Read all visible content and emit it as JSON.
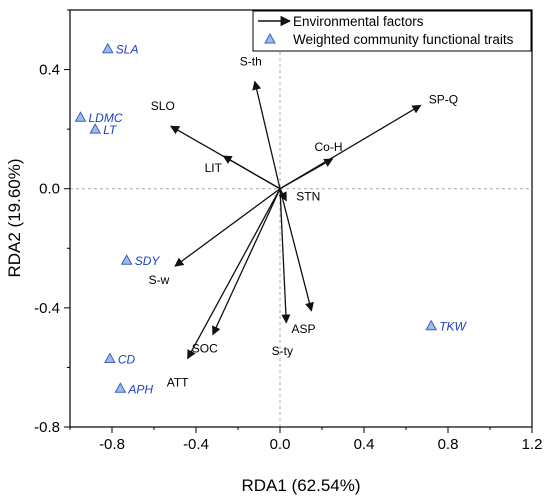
{
  "chart_data": {
    "type": "scatter",
    "subtype": "rda-biplot",
    "xlabel": "RDA1 (62.54%)",
    "ylabel": "RDA2 (19.60%)",
    "xlim": [
      -1.0,
      1.2
    ],
    "ylim": [
      -0.8,
      0.6
    ],
    "x_ticks": [
      -0.8,
      -0.4,
      0.0,
      0.4,
      0.8,
      1.2
    ],
    "x_tick_labels": [
      "-0.8",
      "-0.4",
      "0.0",
      "0.4",
      "0.8",
      "1.2"
    ],
    "y_ticks": [
      -0.8,
      -0.4,
      0.0,
      0.4
    ],
    "y_tick_labels": [
      "-0.8",
      "-0.4",
      "0.0",
      "0.4"
    ],
    "zero_lines": "dashed",
    "grid": false,
    "legend_position": "top-right",
    "legend": [
      {
        "symbol": "arrow",
        "label": "Environmental factors"
      },
      {
        "symbol": "triangle",
        "label": "Weighted community functional traits"
      }
    ],
    "colors": {
      "arrow": "#111111",
      "triangle_fill": "#9bbcf2",
      "triangle_stroke": "#3f5fb8",
      "trait_label": "#1c3fc8",
      "zero_line": "#aaaaaa",
      "axes": "#000000"
    },
    "environmental_factors": [
      {
        "label": "SP-Q",
        "x": 0.67,
        "y": 0.28
      },
      {
        "label": "Co-H",
        "x": 0.25,
        "y": 0.1
      },
      {
        "label": "S-th",
        "x": -0.12,
        "y": 0.36
      },
      {
        "label": "SLO",
        "x": -0.52,
        "y": 0.21
      },
      {
        "label": "LIT",
        "x": -0.27,
        "y": 0.11
      },
      {
        "label": "STN",
        "x": 0.03,
        "y": -0.04
      },
      {
        "label": "S-w",
        "x": -0.5,
        "y": -0.26
      },
      {
        "label": "ASP",
        "x": 0.15,
        "y": -0.41
      },
      {
        "label": "S-ty",
        "x": 0.03,
        "y": -0.45
      },
      {
        "label": "SOC",
        "x": -0.32,
        "y": -0.49
      },
      {
        "label": "ATT",
        "x": -0.44,
        "y": -0.57
      }
    ],
    "functional_traits": [
      {
        "label": "SLA",
        "x": -0.82,
        "y": 0.47
      },
      {
        "label": "LDMC",
        "x": -0.95,
        "y": 0.24
      },
      {
        "label": "LT",
        "x": -0.88,
        "y": 0.2
      },
      {
        "label": "SDY",
        "x": -0.73,
        "y": -0.24
      },
      {
        "label": "CD",
        "x": -0.81,
        "y": -0.57
      },
      {
        "label": "APH",
        "x": -0.76,
        "y": -0.67
      },
      {
        "label": "TKW",
        "x": 0.72,
        "y": -0.46
      }
    ]
  }
}
